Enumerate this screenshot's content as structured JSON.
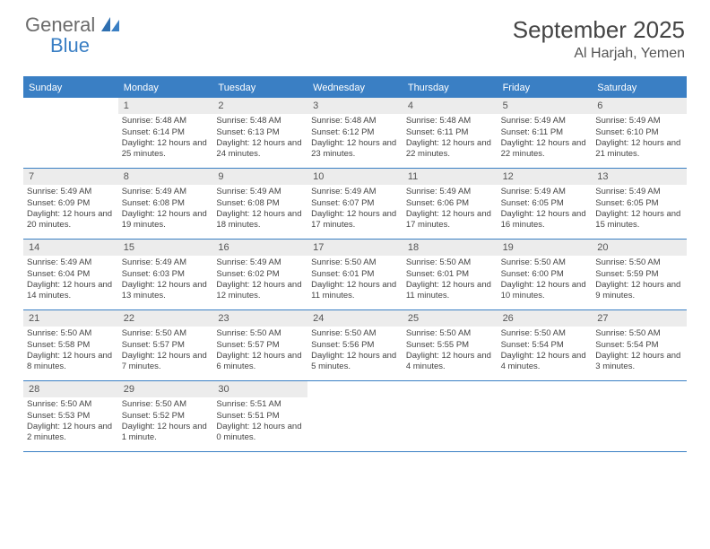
{
  "logo": {
    "text1": "General",
    "text2": "Blue"
  },
  "title": "September 2025",
  "location": "Al Harjah, Yemen",
  "colors": {
    "header_bg": "#3a7fc4",
    "header_text": "#ffffff",
    "daynum_bg": "#ececec",
    "border": "#3a7fc4"
  },
  "day_names": [
    "Sunday",
    "Monday",
    "Tuesday",
    "Wednesday",
    "Thursday",
    "Friday",
    "Saturday"
  ],
  "weeks": [
    [
      null,
      {
        "n": "1",
        "sr": "5:48 AM",
        "ss": "6:14 PM",
        "dl": "12 hours and 25 minutes."
      },
      {
        "n": "2",
        "sr": "5:48 AM",
        "ss": "6:13 PM",
        "dl": "12 hours and 24 minutes."
      },
      {
        "n": "3",
        "sr": "5:48 AM",
        "ss": "6:12 PM",
        "dl": "12 hours and 23 minutes."
      },
      {
        "n": "4",
        "sr": "5:48 AM",
        "ss": "6:11 PM",
        "dl": "12 hours and 22 minutes."
      },
      {
        "n": "5",
        "sr": "5:49 AM",
        "ss": "6:11 PM",
        "dl": "12 hours and 22 minutes."
      },
      {
        "n": "6",
        "sr": "5:49 AM",
        "ss": "6:10 PM",
        "dl": "12 hours and 21 minutes."
      }
    ],
    [
      {
        "n": "7",
        "sr": "5:49 AM",
        "ss": "6:09 PM",
        "dl": "12 hours and 20 minutes."
      },
      {
        "n": "8",
        "sr": "5:49 AM",
        "ss": "6:08 PM",
        "dl": "12 hours and 19 minutes."
      },
      {
        "n": "9",
        "sr": "5:49 AM",
        "ss": "6:08 PM",
        "dl": "12 hours and 18 minutes."
      },
      {
        "n": "10",
        "sr": "5:49 AM",
        "ss": "6:07 PM",
        "dl": "12 hours and 17 minutes."
      },
      {
        "n": "11",
        "sr": "5:49 AM",
        "ss": "6:06 PM",
        "dl": "12 hours and 17 minutes."
      },
      {
        "n": "12",
        "sr": "5:49 AM",
        "ss": "6:05 PM",
        "dl": "12 hours and 16 minutes."
      },
      {
        "n": "13",
        "sr": "5:49 AM",
        "ss": "6:05 PM",
        "dl": "12 hours and 15 minutes."
      }
    ],
    [
      {
        "n": "14",
        "sr": "5:49 AM",
        "ss": "6:04 PM",
        "dl": "12 hours and 14 minutes."
      },
      {
        "n": "15",
        "sr": "5:49 AM",
        "ss": "6:03 PM",
        "dl": "12 hours and 13 minutes."
      },
      {
        "n": "16",
        "sr": "5:49 AM",
        "ss": "6:02 PM",
        "dl": "12 hours and 12 minutes."
      },
      {
        "n": "17",
        "sr": "5:50 AM",
        "ss": "6:01 PM",
        "dl": "12 hours and 11 minutes."
      },
      {
        "n": "18",
        "sr": "5:50 AM",
        "ss": "6:01 PM",
        "dl": "12 hours and 11 minutes."
      },
      {
        "n": "19",
        "sr": "5:50 AM",
        "ss": "6:00 PM",
        "dl": "12 hours and 10 minutes."
      },
      {
        "n": "20",
        "sr": "5:50 AM",
        "ss": "5:59 PM",
        "dl": "12 hours and 9 minutes."
      }
    ],
    [
      {
        "n": "21",
        "sr": "5:50 AM",
        "ss": "5:58 PM",
        "dl": "12 hours and 8 minutes."
      },
      {
        "n": "22",
        "sr": "5:50 AM",
        "ss": "5:57 PM",
        "dl": "12 hours and 7 minutes."
      },
      {
        "n": "23",
        "sr": "5:50 AM",
        "ss": "5:57 PM",
        "dl": "12 hours and 6 minutes."
      },
      {
        "n": "24",
        "sr": "5:50 AM",
        "ss": "5:56 PM",
        "dl": "12 hours and 5 minutes."
      },
      {
        "n": "25",
        "sr": "5:50 AM",
        "ss": "5:55 PM",
        "dl": "12 hours and 4 minutes."
      },
      {
        "n": "26",
        "sr": "5:50 AM",
        "ss": "5:54 PM",
        "dl": "12 hours and 4 minutes."
      },
      {
        "n": "27",
        "sr": "5:50 AM",
        "ss": "5:54 PM",
        "dl": "12 hours and 3 minutes."
      }
    ],
    [
      {
        "n": "28",
        "sr": "5:50 AM",
        "ss": "5:53 PM",
        "dl": "12 hours and 2 minutes."
      },
      {
        "n": "29",
        "sr": "5:50 AM",
        "ss": "5:52 PM",
        "dl": "12 hours and 1 minute."
      },
      {
        "n": "30",
        "sr": "5:51 AM",
        "ss": "5:51 PM",
        "dl": "12 hours and 0 minutes."
      },
      null,
      null,
      null,
      null
    ]
  ],
  "labels": {
    "sunrise": "Sunrise:",
    "sunset": "Sunset:",
    "daylight": "Daylight:"
  }
}
